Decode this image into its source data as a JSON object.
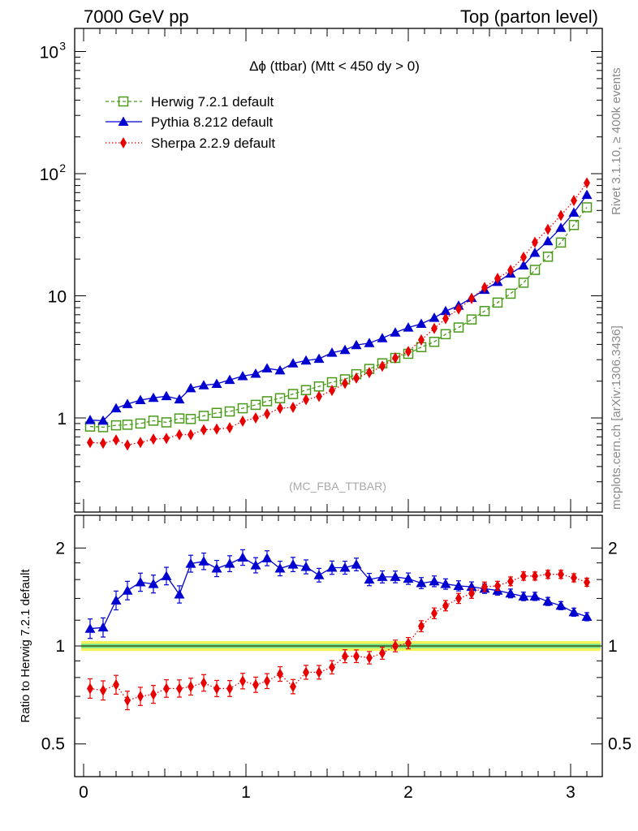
{
  "header": {
    "left": "7000 GeV pp",
    "right": "Top (parton level)"
  },
  "side": {
    "rivet": "Rivet 3.1.10, ≥ 400k events",
    "mcplots": "mcplots.cern.ch [arXiv:1306.3436]"
  },
  "colors": {
    "herwig": "#4a9a1a",
    "pythia": "#0000d0",
    "sherpa": "#e80000",
    "band_yellow": "#f2f25a",
    "band_green": "#6ee48c"
  },
  "chart_data": [
    {
      "type": "line",
      "title": "Δϕ (ttbar) (Mtt < 450 dy > 0)",
      "watermark": "(MC_FBA_TTBAR)",
      "yscale": "log",
      "ylim": [
        0.2,
        1500
      ],
      "xlim": [
        -0.06,
        3.2
      ],
      "yticklabels": [
        "1",
        "10",
        "10^2",
        "10^3"
      ],
      "legend_position": "top-left",
      "x": [
        0.04,
        0.12,
        0.2,
        0.27,
        0.35,
        0.43,
        0.51,
        0.59,
        0.66,
        0.74,
        0.82,
        0.9,
        0.98,
        1.06,
        1.13,
        1.21,
        1.29,
        1.37,
        1.45,
        1.53,
        1.61,
        1.68,
        1.76,
        1.84,
        1.92,
        2.0,
        2.08,
        2.16,
        2.23,
        2.31,
        2.39,
        2.47,
        2.55,
        2.63,
        2.71,
        2.78,
        2.86,
        2.94,
        3.02,
        3.1
      ],
      "series": [
        {
          "name": "Herwig 7.2.1 default",
          "marker": "open-square",
          "linestyle": "dashed",
          "values": [
            0.85,
            0.84,
            0.87,
            0.88,
            0.9,
            0.95,
            0.92,
            0.99,
            0.98,
            1.04,
            1.1,
            1.13,
            1.2,
            1.28,
            1.37,
            1.45,
            1.57,
            1.69,
            1.81,
            1.96,
            2.07,
            2.28,
            2.52,
            2.8,
            3.1,
            3.35,
            3.8,
            4.2,
            4.85,
            5.5,
            6.4,
            7.5,
            8.8,
            10.4,
            12.8,
            16.3,
            20.9,
            27.3,
            38.0,
            53.0
          ]
        },
        {
          "name": "Pythia 8.212 default",
          "marker": "filled-triangle",
          "linestyle": "solid",
          "values": [
            0.96,
            0.95,
            1.2,
            1.3,
            1.4,
            1.46,
            1.51,
            1.42,
            1.75,
            1.85,
            1.9,
            2.05,
            2.2,
            2.3,
            2.55,
            2.45,
            2.8,
            2.95,
            3.05,
            3.42,
            3.6,
            3.95,
            4.1,
            4.5,
            5.0,
            5.5,
            5.9,
            6.6,
            7.5,
            8.3,
            9.6,
            11.2,
            13.0,
            15.2,
            17.7,
            22.5,
            28.0,
            36.0,
            48.0,
            67.0
          ]
        },
        {
          "name": "Sherpa 2.2.9 default",
          "marker": "filled-diamond",
          "linestyle": "dotted",
          "values": [
            0.63,
            0.62,
            0.66,
            0.6,
            0.63,
            0.67,
            0.68,
            0.73,
            0.73,
            0.8,
            0.81,
            0.83,
            0.94,
            1.0,
            1.08,
            1.2,
            1.22,
            1.41,
            1.5,
            1.68,
            1.92,
            2.12,
            2.35,
            2.65,
            3.1,
            3.5,
            4.35,
            5.4,
            6.5,
            7.8,
            9.5,
            11.7,
            13.9,
            16.2,
            20.7,
            27.4,
            35.0,
            45.5,
            60.2,
            84.0
          ]
        }
      ]
    },
    {
      "type": "line",
      "ylabel": "Ratio to Herwig 7.2.1 default",
      "xlim": [
        -0.06,
        3.2
      ],
      "ylim": [
        0.4,
        2.35
      ],
      "yscale": "log",
      "yticklabels": [
        "0.5",
        "1",
        "2"
      ],
      "xticklabels": [
        "0",
        "1",
        "2",
        "3"
      ],
      "x": [
        0.04,
        0.12,
        0.2,
        0.27,
        0.35,
        0.43,
        0.51,
        0.59,
        0.66,
        0.74,
        0.82,
        0.9,
        0.98,
        1.06,
        1.13,
        1.21,
        1.29,
        1.37,
        1.45,
        1.53,
        1.61,
        1.68,
        1.76,
        1.84,
        1.92,
        2.0,
        2.08,
        2.16,
        2.23,
        2.31,
        2.39,
        2.47,
        2.55,
        2.63,
        2.71,
        2.78,
        2.86,
        2.94,
        3.02,
        3.1
      ],
      "series": [
        {
          "name": "Pythia 8.212 default",
          "values": [
            1.13,
            1.14,
            1.38,
            1.48,
            1.57,
            1.55,
            1.64,
            1.44,
            1.79,
            1.82,
            1.73,
            1.79,
            1.87,
            1.77,
            1.86,
            1.73,
            1.78,
            1.75,
            1.65,
            1.74,
            1.74,
            1.78,
            1.6,
            1.63,
            1.63,
            1.61,
            1.56,
            1.58,
            1.55,
            1.53,
            1.52,
            1.5,
            1.48,
            1.45,
            1.42,
            1.42,
            1.37,
            1.33,
            1.27,
            1.23
          ]
        },
        {
          "name": "Sherpa 2.2.9 default",
          "values": [
            0.74,
            0.73,
            0.76,
            0.68,
            0.7,
            0.71,
            0.74,
            0.74,
            0.75,
            0.77,
            0.74,
            0.74,
            0.78,
            0.76,
            0.78,
            0.82,
            0.75,
            0.83,
            0.83,
            0.86,
            0.93,
            0.93,
            0.92,
            0.95,
            1.0,
            1.02,
            1.15,
            1.26,
            1.33,
            1.4,
            1.45,
            1.52,
            1.53,
            1.58,
            1.64,
            1.64,
            1.66,
            1.66,
            1.62,
            1.57
          ]
        }
      ]
    }
  ]
}
